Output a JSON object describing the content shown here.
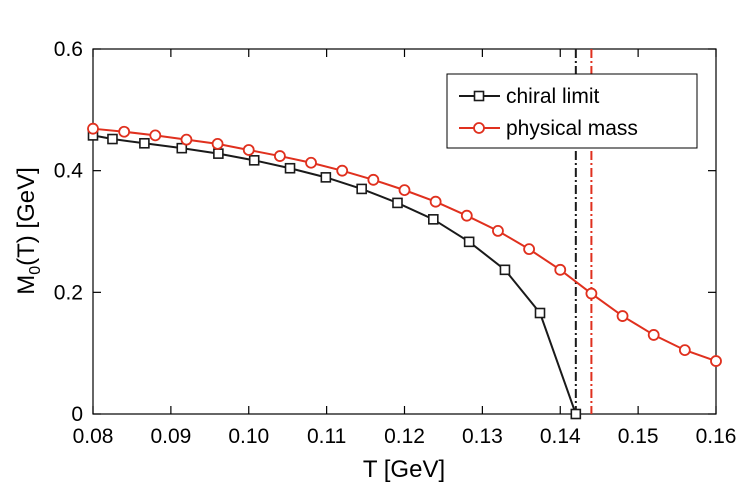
{
  "chart_data": {
    "type": "line",
    "xlabel": "T [GeV]",
    "ylabel_main": "M",
    "ylabel_sub": "0",
    "ylabel_rest": "(T) [GeV]",
    "xlim": [
      0.08,
      0.16
    ],
    "ylim": [
      0,
      0.6
    ],
    "x_ticks": [
      0.08,
      0.09,
      0.1,
      0.11,
      0.12,
      0.13,
      0.14,
      0.15,
      0.16
    ],
    "x_tick_labels": [
      "0.08",
      "0.09",
      "0.10",
      "0.11",
      "0.12",
      "0.13",
      "0.14",
      "0.15",
      "0.16"
    ],
    "y_ticks": [
      0,
      0.2,
      0.4,
      0.6
    ],
    "y_tick_labels": [
      "0",
      "0.2",
      "0.4",
      "0.6"
    ],
    "grid": false,
    "legend_position": "top-right",
    "series": [
      {
        "name": "chiral limit",
        "color": "#1a1a1a",
        "marker": "square",
        "x": [
          0.08,
          0.0825,
          0.0866,
          0.0914,
          0.0961,
          0.1007,
          0.1053,
          0.1099,
          0.1145,
          0.1191,
          0.1237,
          0.1283,
          0.1329,
          0.1374,
          0.142
        ],
        "y": [
          0.458,
          0.452,
          0.445,
          0.437,
          0.428,
          0.417,
          0.404,
          0.389,
          0.37,
          0.347,
          0.32,
          0.283,
          0.237,
          0.166,
          0.0
        ]
      },
      {
        "name": "physical mass",
        "color": "#e0301e",
        "marker": "circle",
        "x": [
          0.08,
          0.084,
          0.088,
          0.092,
          0.096,
          0.1,
          0.104,
          0.108,
          0.112,
          0.116,
          0.12,
          0.124,
          0.128,
          0.132,
          0.136,
          0.14,
          0.144,
          0.148,
          0.152,
          0.156,
          0.16
        ],
        "y": [
          0.469,
          0.464,
          0.458,
          0.451,
          0.444,
          0.434,
          0.424,
          0.413,
          0.4,
          0.385,
          0.368,
          0.349,
          0.326,
          0.301,
          0.271,
          0.237,
          0.198,
          0.161,
          0.13,
          0.105,
          0.087
        ]
      }
    ],
    "vertical_lines": [
      {
        "x": 0.142,
        "color": "#1a1a1a",
        "style": "dash-dot"
      },
      {
        "x": 0.144,
        "color": "#e0301e",
        "style": "dash-dot"
      }
    ]
  }
}
